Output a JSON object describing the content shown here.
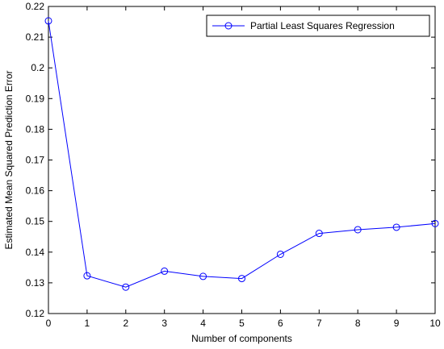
{
  "colors": {
    "series": "#0000ff",
    "axes": "#000000",
    "background": "#ffffff"
  },
  "chart_data": {
    "type": "line",
    "xlabel": "Number of components",
    "ylabel": "Estimated Mean Squared Prediction Error",
    "xlim": [
      0,
      10
    ],
    "ylim": [
      0.12,
      0.22
    ],
    "xticks": [
      0,
      1,
      2,
      3,
      4,
      5,
      6,
      7,
      8,
      9,
      10
    ],
    "yticks": [
      0.12,
      0.13,
      0.14,
      0.15,
      0.16,
      0.17,
      0.18,
      0.19,
      0.2,
      0.21,
      0.22
    ],
    "ytick_labels": [
      "0.12",
      "0.13",
      "0.14",
      "0.15",
      "0.16",
      "0.17",
      "0.18",
      "0.19",
      "0.2",
      "0.21",
      "0.22"
    ],
    "grid": false,
    "legend_position": "top-right",
    "marker": "circle",
    "series": [
      {
        "name": "Partial Least Squares Regression",
        "x": [
          0,
          1,
          2,
          3,
          4,
          5,
          6,
          7,
          8,
          9,
          10
        ],
        "values": [
          0.2153,
          0.1323,
          0.1286,
          0.1338,
          0.1321,
          0.1314,
          0.1393,
          0.1461,
          0.1473,
          0.1481,
          0.1493
        ]
      }
    ]
  }
}
